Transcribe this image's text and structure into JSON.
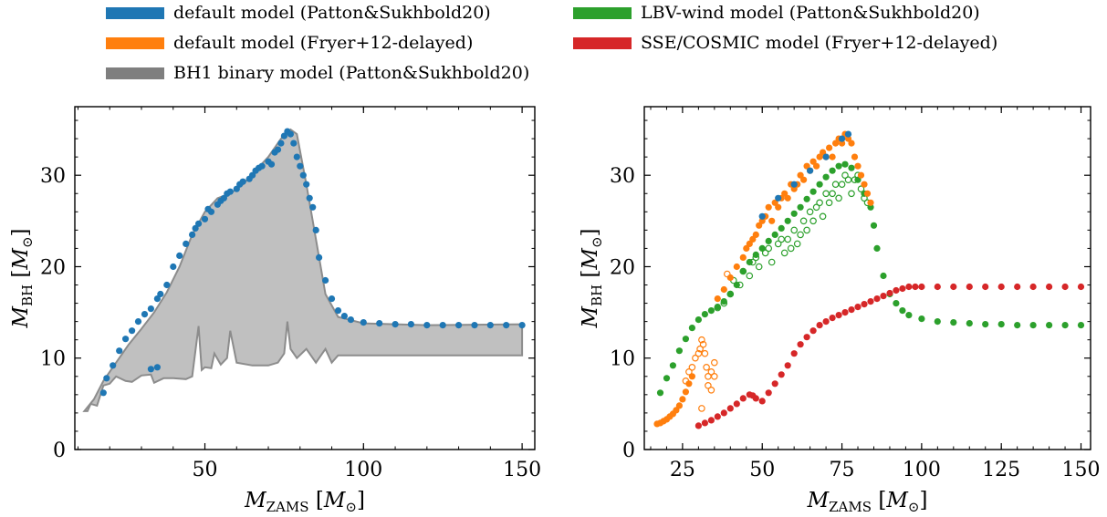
{
  "legend": [
    {
      "label": "default model (Patton&Sukhbold20)",
      "color": "#1f77b4"
    },
    {
      "label": "LBV-wind model (Patton&Sukhbold20)",
      "color": "#2ca02c"
    },
    {
      "label": "default model (Fryer+12-delayed)",
      "color": "#ff7f0e"
    },
    {
      "label": "SSE/COSMIC model (Fryer+12-delayed)",
      "color": "#d62728"
    },
    {
      "label": "BH1 binary model (Patton&Sukhbold20)",
      "color": "#7f7f7f"
    }
  ],
  "chart_data": [
    {
      "type": "scatter",
      "panel": "left",
      "xlabel": "M_ZAMS [M_⊙]",
      "ylabel": "M_BH [M_⊙]",
      "xlim": [
        9,
        154
      ],
      "ylim": [
        0,
        37.5
      ],
      "xticks": [
        50,
        100,
        150
      ],
      "yticks": [
        0,
        10,
        20,
        30
      ],
      "series": [
        {
          "name": "BH1 binary model (Patton&Sukhbold20)",
          "kind": "band",
          "color": "#7f7f7f",
          "upper": [
            [
              12,
              4.2
            ],
            [
              15,
              5.5
            ],
            [
              18,
              7.5
            ],
            [
              22,
              9.5
            ],
            [
              26,
              11.5
            ],
            [
              30,
              13.2
            ],
            [
              34,
              15
            ],
            [
              38,
              17.2
            ],
            [
              42,
              20
            ],
            [
              46,
              23.5
            ],
            [
              50,
              26
            ],
            [
              54,
              27.5
            ],
            [
              58,
              28
            ],
            [
              62,
              29
            ],
            [
              66,
              30.5
            ],
            [
              70,
              32
            ],
            [
              74,
              34
            ],
            [
              77,
              35
            ],
            [
              79,
              34.5
            ],
            [
              82,
              29
            ],
            [
              85,
              23
            ],
            [
              88,
              17
            ],
            [
              92,
              14.5
            ],
            [
              100,
              13.8
            ],
            [
              120,
              13.6
            ],
            [
              150,
              13.7
            ]
          ],
          "lower": [
            [
              150,
              10.3
            ],
            [
              120,
              10.3
            ],
            [
              100,
              10.3
            ],
            [
              92,
              10.3
            ],
            [
              90,
              9.5
            ],
            [
              88,
              11
            ],
            [
              85,
              9.5
            ],
            [
              82,
              11
            ],
            [
              79,
              10
            ],
            [
              77,
              11
            ],
            [
              76,
              14
            ],
            [
              75,
              10.5
            ],
            [
              73,
              9.5
            ],
            [
              70,
              9.2
            ],
            [
              65,
              9.2
            ],
            [
              60,
              9.5
            ],
            [
              58,
              13
            ],
            [
              57,
              10
            ],
            [
              55,
              9.3
            ],
            [
              53,
              10.5
            ],
            [
              52,
              8.9
            ],
            [
              50,
              9
            ],
            [
              49,
              8.7
            ],
            [
              48,
              13.5
            ],
            [
              46,
              8
            ],
            [
              44,
              7.7
            ],
            [
              40,
              7.8
            ],
            [
              37,
              7.8
            ],
            [
              34,
              7.3
            ],
            [
              33,
              8.2
            ],
            [
              30,
              8.1
            ],
            [
              27,
              7.4
            ],
            [
              25,
              7.5
            ],
            [
              22,
              8
            ],
            [
              20,
              7.2
            ],
            [
              18,
              7
            ],
            [
              16,
              4.8
            ],
            [
              14,
              5
            ],
            [
              13,
              4.2
            ]
          ]
        },
        {
          "name": "default model (Patton&Sukhbold20)",
          "color": "#1f77b4",
          "x": [
            18,
            19,
            21,
            23,
            25,
            27,
            29,
            31,
            33,
            35,
            36,
            38,
            40,
            42,
            44,
            46,
            47,
            48,
            50,
            51,
            52,
            54,
            55,
            56,
            57,
            58,
            60,
            61,
            62,
            64,
            65,
            66,
            67,
            68,
            70,
            71,
            72,
            73,
            74,
            75,
            76,
            77,
            78,
            79,
            80,
            81,
            82,
            83,
            84,
            85,
            86,
            88,
            90,
            92,
            94,
            96,
            100,
            105,
            110,
            115,
            120,
            125,
            130,
            135,
            140,
            145,
            150,
            33,
            35
          ],
          "y": [
            6.2,
            7.8,
            9.2,
            10.8,
            12.1,
            13.0,
            14.0,
            14.8,
            15.4,
            16.5,
            17,
            18,
            20,
            21.2,
            22.5,
            23.5,
            24.2,
            24.7,
            25.2,
            26.3,
            26,
            26.8,
            27.2,
            27.5,
            28,
            28.2,
            28.5,
            29,
            29.3,
            29.6,
            30,
            30.5,
            30.8,
            31,
            31.5,
            31.2,
            32.5,
            32.8,
            33.5,
            34.3,
            34.8,
            34.5,
            33.5,
            32,
            31,
            30,
            29,
            27.5,
            26.5,
            24,
            21,
            18.5,
            16.5,
            15.2,
            14.6,
            14.2,
            13.9,
            13.8,
            13.7,
            13.7,
            13.6,
            13.6,
            13.6,
            13.6,
            13.6,
            13.6,
            13.6,
            8.8,
            9
          ]
        }
      ]
    },
    {
      "type": "scatter",
      "panel": "right",
      "xlabel": "M_ZAMS [M_⊙]",
      "ylabel": "M_BH [M_⊙]",
      "xlim": [
        13,
        153
      ],
      "ylim": [
        0,
        37.5
      ],
      "xticks": [
        25,
        50,
        75,
        100,
        125,
        150
      ],
      "yticks": [
        0,
        10,
        20,
        30
      ],
      "series": [
        {
          "name": "LBV-wind model (Patton&Sukhbold20)",
          "color": "#2ca02c",
          "filled": true,
          "x": [
            18,
            20,
            22,
            24,
            26,
            28,
            30,
            32,
            34,
            36,
            38,
            40,
            42,
            44,
            46,
            48,
            50,
            52,
            54,
            56,
            58,
            60,
            62,
            64,
            66,
            68,
            70,
            72,
            74,
            76,
            78,
            80,
            82,
            84,
            85,
            86,
            88,
            90,
            92,
            94,
            96,
            100,
            105,
            110,
            115,
            120,
            125,
            130,
            135,
            140,
            145,
            150
          ],
          "y": [
            6.2,
            7.8,
            9.2,
            10.8,
            12.1,
            13.3,
            14.2,
            14.8,
            15.2,
            15.6,
            16.2,
            17,
            18,
            19.5,
            20.5,
            21.3,
            22,
            22.8,
            23.5,
            24.2,
            25,
            25.8,
            26.5,
            27.4,
            28.2,
            29,
            29.8,
            30.5,
            31,
            31.2,
            30.8,
            29.5,
            28,
            26.5,
            24.5,
            22,
            19,
            17,
            16,
            15.2,
            14.7,
            14.3,
            14,
            13.9,
            13.8,
            13.7,
            13.7,
            13.6,
            13.6,
            13.6,
            13.6,
            13.6
          ]
        },
        {
          "name": "LBV-wind model (Patton&Sukhbold20)",
          "color": "#2ca02c",
          "filled": false,
          "x": [
            36,
            38,
            40,
            41,
            43,
            44,
            46,
            47,
            48,
            49,
            51,
            52,
            53,
            55,
            56,
            57,
            58,
            59,
            60,
            61,
            62,
            63,
            64,
            65,
            66,
            67,
            68,
            69,
            70,
            71,
            72,
            73,
            74,
            75,
            76,
            77,
            78,
            79,
            80,
            81,
            82,
            83
          ],
          "y": [
            15.5,
            16,
            17,
            18.5,
            18,
            19.5,
            19,
            20.5,
            21,
            20,
            21.5,
            22,
            20.5,
            22.5,
            23,
            21.5,
            23,
            22,
            24,
            22.5,
            23.5,
            25,
            24,
            26,
            25,
            26.5,
            27,
            25.5,
            28,
            27,
            28,
            29,
            27.5,
            29,
            30,
            29.5,
            28,
            29.5,
            30,
            28.5,
            27.5,
            27
          ]
        },
        {
          "name": "default model (Fryer+12-delayed)",
          "color": "#ff7f0e",
          "filled": true,
          "x": [
            17,
            18,
            19,
            20,
            21,
            22,
            23,
            24,
            25,
            26,
            27,
            28,
            36,
            38,
            40,
            42,
            44,
            45,
            46,
            47,
            48,
            49,
            50,
            51,
            52,
            53,
            54,
            55,
            56,
            57,
            58,
            59,
            60,
            61,
            62,
            63,
            64,
            65,
            66,
            67,
            68,
            69,
            70,
            71,
            72,
            73,
            74,
            75,
            76,
            77,
            78,
            79,
            80,
            81,
            82,
            83,
            84
          ],
          "y": [
            2.8,
            2.9,
            3.1,
            3.3,
            3.6,
            3.9,
            4.3,
            4.8,
            5.5,
            6.3,
            7.2,
            8,
            16.5,
            17.5,
            18.8,
            20,
            21,
            22,
            22.5,
            23,
            23.5,
            24.5,
            25,
            25.5,
            26.5,
            25,
            27,
            26.5,
            27.5,
            28,
            27.5,
            29,
            28.5,
            29,
            30,
            29.5,
            31,
            30.5,
            31.5,
            31,
            32,
            32.5,
            32,
            33,
            32,
            33.5,
            34,
            33.5,
            34.5,
            34,
            33.5,
            32,
            31,
            30,
            29,
            28,
            27
          ]
        },
        {
          "name": "default model (Fryer+12-delayed)",
          "color": "#ff7f0e",
          "filled": false,
          "x": [
            26,
            27,
            28,
            29,
            30,
            30.5,
            31,
            31.5,
            32,
            32.5,
            33,
            34,
            35,
            31,
            33,
            34,
            35,
            39
          ],
          "y": [
            7.5,
            8.5,
            9,
            10,
            10.5,
            11,
            12,
            11.5,
            10.5,
            9,
            8,
            8.5,
            9.5,
            4.5,
            7,
            6.5,
            8,
            19.2
          ]
        },
        {
          "name": "SSE/COSMIC model (Fryer+12-delayed)",
          "color": "#d62728",
          "filled": true,
          "x": [
            30,
            32,
            34,
            36,
            38,
            40,
            42,
            44,
            46,
            47,
            48,
            50,
            52,
            54,
            56,
            58,
            60,
            62,
            64,
            66,
            68,
            70,
            72,
            74,
            76,
            78,
            80,
            82,
            84,
            86,
            88,
            90,
            92,
            94,
            96,
            98,
            100,
            105,
            110,
            115,
            120,
            125,
            130,
            135,
            140,
            145,
            150
          ],
          "y": [
            2.6,
            2.9,
            3.2,
            3.6,
            4.0,
            4.5,
            5.0,
            5.6,
            6.0,
            5.9,
            5.6,
            5.3,
            6.2,
            7.2,
            8.2,
            9.2,
            10.5,
            11.5,
            12.3,
            13.0,
            13.6,
            14.0,
            14.4,
            14.7,
            15.0,
            15.3,
            15.6,
            15.9,
            16.2,
            16.5,
            16.8,
            17.1,
            17.4,
            17.6,
            17.8,
            17.8,
            17.8,
            17.8,
            17.8,
            17.8,
            17.8,
            17.8,
            17.8,
            17.8,
            17.8,
            17.8,
            17.8
          ]
        },
        {
          "name": "BH1 binary model (Patton&Sukhbold20)",
          "color": "#1f77b4",
          "filled": true,
          "x": [
            50,
            55,
            60,
            65,
            70,
            75,
            77
          ],
          "y": [
            25.5,
            27.5,
            29,
            30.5,
            32,
            34,
            34.5
          ]
        }
      ]
    }
  ]
}
